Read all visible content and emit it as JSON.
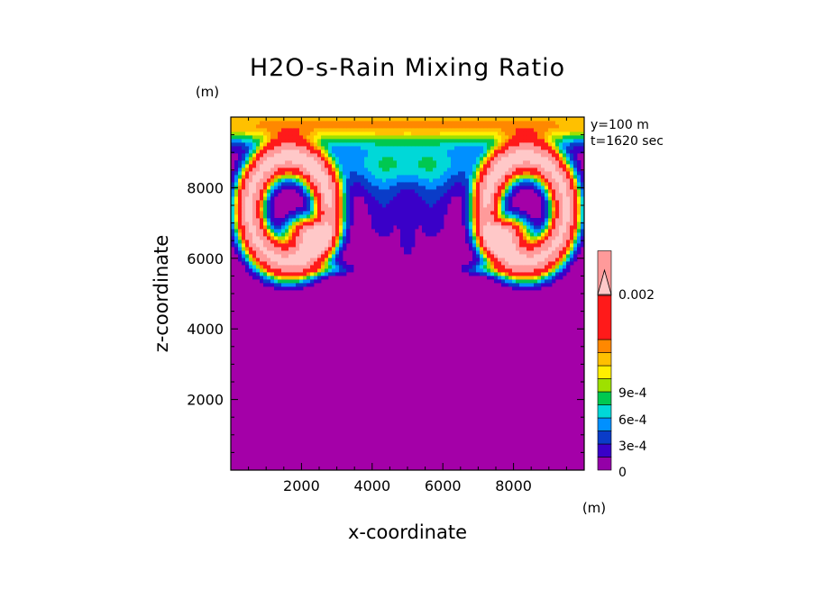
{
  "chart_data": {
    "type": "heatmap",
    "title": "H2O-s-Rain Mixing Ratio",
    "xlabel": "x-coordinate",
    "ylabel": "z-coordinate",
    "x_unit": "(m)",
    "y_unit": "(m)",
    "annotations": [
      "y=100 m",
      "t=1620 sec"
    ],
    "xlim": [
      0,
      10000
    ],
    "ylim": [
      0,
      10000
    ],
    "x_ticks": [
      2000,
      4000,
      6000,
      8000
    ],
    "x_tick_labels": [
      "2000",
      "4000",
      "6000",
      "8000"
    ],
    "y_ticks": [
      2000,
      4000,
      6000,
      8000
    ],
    "y_tick_labels": [
      "2000",
      "4000",
      "6000",
      "8000"
    ],
    "colorbar": {
      "levels": [
        0,
        0.0001,
        0.0002,
        0.0003,
        0.0004,
        0.0005,
        0.0006,
        0.0007,
        0.0008,
        0.0009,
        0.001,
        0.0015,
        0.002
      ],
      "colors": [
        "#9400a8",
        "#3a00c8",
        "#0a3cc8",
        "#0090ff",
        "#00d8d8",
        "#00c850",
        "#9ee000",
        "#ffee00",
        "#ffc000",
        "#ff8800",
        "#ff1a1a",
        "#ff9a9a",
        "#ffc8c8"
      ],
      "tick_labels": [
        "0.002",
        "9e-4",
        "6e-4",
        "3e-4",
        "0"
      ],
      "extend": "max"
    },
    "field_description": "Rain mixing ratio max ~0.002 in two symmetric vortex lobes near x≈1800 and x≈8200, z≈6000-9000; background near 0",
    "peak_value": 0.002,
    "lobe_centers_x": [
      1800,
      8200
    ],
    "lobe_center_z": 7000
  }
}
